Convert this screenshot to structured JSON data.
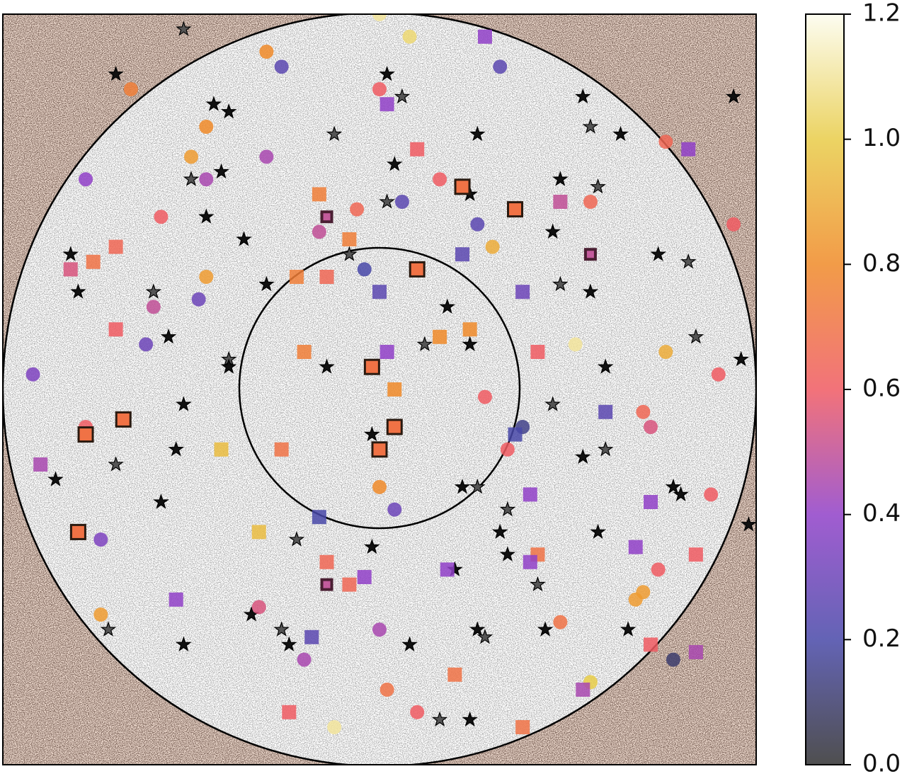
{
  "chart_data": {
    "type": "scatter",
    "clim": [
      0,
      1.2
    ],
    "colormap": [
      "#303030",
      "#4848a8",
      "#9040c8",
      "#f05a62",
      "#f08a28",
      "#e8cc48",
      "#fcfcee"
    ],
    "cticks": [
      {
        "value": 0,
        "label": "0.0"
      },
      0.2,
      0.4,
      0.6,
      0.8,
      {
        "value": 1,
        "label": "1.0"
      },
      1.2
    ],
    "circles": {
      "x": [
        0.5,
        0.54,
        0.35,
        0.37,
        0.66,
        0.17,
        0.5,
        0.27,
        0.25,
        0.35,
        0.11,
        0.27,
        0.58,
        0.53,
        0.47,
        0.78,
        0.21,
        0.42,
        0.63,
        0.65,
        0.48,
        0.27,
        0.26,
        0.2,
        0.19,
        0.76,
        0.88,
        0.95,
        0.64,
        0.85,
        0.86,
        0.11,
        0.69,
        0.67,
        0.5,
        0.52,
        0.13,
        0.94,
        0.87,
        0.84,
        0.85,
        0.34,
        0.13,
        0.74,
        0.5,
        0.4,
        0.89,
        0.78,
        0.51,
        0.55,
        0.44,
        0.97,
        0.88,
        0.04
      ],
      "y": [
        0.0,
        0.03,
        0.05,
        0.07,
        0.07,
        0.1,
        0.1,
        0.15,
        0.19,
        0.19,
        0.22,
        0.22,
        0.22,
        0.25,
        0.26,
        0.25,
        0.27,
        0.29,
        0.28,
        0.31,
        0.34,
        0.35,
        0.38,
        0.39,
        0.44,
        0.44,
        0.45,
        0.48,
        0.51,
        0.53,
        0.55,
        0.55,
        0.55,
        0.58,
        0.63,
        0.66,
        0.7,
        0.64,
        0.74,
        0.78,
        0.77,
        0.79,
        0.8,
        0.81,
        0.82,
        0.86,
        0.86,
        0.89,
        0.9,
        0.93,
        0.95,
        0.28,
        0.17,
        0.48
      ],
      "values": [
        1.1,
        1.05,
        0.8,
        0.25,
        0.25,
        0.75,
        0.6,
        0.8,
        0.85,
        0.45,
        0.4,
        0.45,
        0.6,
        0.25,
        0.65,
        0.65,
        0.6,
        0.5,
        0.25,
        0.9,
        0.2,
        0.85,
        0.3,
        0.5,
        0.3,
        1.1,
        0.9,
        0.6,
        0.6,
        0.65,
        0.55,
        0.6,
        0.15,
        0.6,
        0.8,
        0.3,
        0.35,
        0.6,
        0.6,
        0.85,
        0.85,
        0.55,
        0.85,
        0.7,
        0.45,
        0.45,
        0.1,
        1.0,
        0.7,
        0.6,
        1.1,
        0.6,
        0.65,
        0.35
      ]
    },
    "squares": {
      "x": [
        0.64,
        0.51,
        0.55,
        0.91,
        0.42,
        0.46,
        0.74,
        0.15,
        0.12,
        0.09,
        0.61,
        0.39,
        0.43,
        0.5,
        0.69,
        0.15,
        0.58,
        0.62,
        0.4,
        0.51,
        0.71,
        0.52,
        0.8,
        0.37,
        0.29,
        0.05,
        0.7,
        0.86,
        0.42,
        0.34,
        0.84,
        0.71,
        0.7,
        0.92,
        0.59,
        0.43,
        0.46,
        0.48,
        0.23,
        0.41,
        0.86,
        0.92,
        0.6,
        0.77,
        0.38,
        0.69,
        0.68
      ],
      "y": [
        0.03,
        0.12,
        0.18,
        0.18,
        0.24,
        0.3,
        0.25,
        0.31,
        0.33,
        0.34,
        0.32,
        0.35,
        0.35,
        0.37,
        0.37,
        0.42,
        0.43,
        0.42,
        0.45,
        0.45,
        0.45,
        0.5,
        0.53,
        0.58,
        0.58,
        0.6,
        0.64,
        0.65,
        0.67,
        0.69,
        0.71,
        0.72,
        0.73,
        0.72,
        0.74,
        0.73,
        0.76,
        0.75,
        0.78,
        0.83,
        0.84,
        0.85,
        0.88,
        0.9,
        0.93,
        0.95,
        0.56
      ],
      "values": [
        0.4,
        0.4,
        0.6,
        0.4,
        0.75,
        0.75,
        0.5,
        0.65,
        0.7,
        0.55,
        0.25,
        0.75,
        0.65,
        0.25,
        0.3,
        0.6,
        0.8,
        0.8,
        0.75,
        0.4,
        0.6,
        0.8,
        0.25,
        0.7,
        0.95,
        0.45,
        0.4,
        0.4,
        0.2,
        0.95,
        0.4,
        0.7,
        0.4,
        0.6,
        0.4,
        0.65,
        0.65,
        0.4,
        0.4,
        0.25,
        0.6,
        0.45,
        0.7,
        0.45,
        0.6,
        0.7,
        0.2
      ]
    },
    "outlined_squares": {
      "x": [
        0.61,
        0.68,
        0.55,
        0.49,
        0.52,
        0.5,
        0.16,
        0.11,
        0.1
      ],
      "y": [
        0.23,
        0.26,
        0.34,
        0.47,
        0.55,
        0.58,
        0.54,
        0.56,
        0.69
      ],
      "values": [
        0.7,
        0.7,
        0.7,
        0.7,
        0.7,
        0.7,
        0.7,
        0.7,
        0.7
      ]
    },
    "small_outlined_squares": {
      "x": [
        0.43,
        0.78,
        0.43
      ],
      "y": [
        0.27,
        0.32,
        0.76
      ],
      "values": [
        0.5,
        0.5,
        0.5
      ]
    },
    "stars": {
      "x": [
        0.24,
        0.15,
        0.51,
        0.53,
        0.28,
        0.3,
        0.44,
        0.63,
        0.77,
        0.78,
        0.82,
        0.97,
        0.25,
        0.29,
        0.52,
        0.51,
        0.62,
        0.74,
        0.79,
        0.27,
        0.32,
        0.46,
        0.73,
        0.87,
        0.91,
        0.09,
        0.1,
        0.2,
        0.35,
        0.59,
        0.74,
        0.78,
        0.22,
        0.3,
        0.3,
        0.43,
        0.56,
        0.62,
        0.8,
        0.92,
        0.98,
        0.24,
        0.73,
        0.49,
        0.23,
        0.15,
        0.07,
        0.77,
        0.8,
        0.21,
        0.61,
        0.63,
        0.89,
        0.9,
        0.67,
        0.66,
        0.79,
        0.39,
        0.49,
        0.67,
        0.71,
        0.6,
        0.33,
        0.37,
        0.38,
        0.24,
        0.14,
        0.54,
        0.63,
        0.64,
        0.72,
        0.83,
        0.58,
        0.62,
        0.99
      ],
      "y": [
        0.02,
        0.08,
        0.08,
        0.11,
        0.12,
        0.13,
        0.16,
        0.16,
        0.11,
        0.15,
        0.16,
        0.11,
        0.22,
        0.21,
        0.2,
        0.25,
        0.24,
        0.22,
        0.23,
        0.27,
        0.3,
        0.32,
        0.29,
        0.32,
        0.33,
        0.32,
        0.37,
        0.37,
        0.36,
        0.39,
        0.36,
        0.37,
        0.43,
        0.46,
        0.47,
        0.47,
        0.44,
        0.44,
        0.47,
        0.43,
        0.46,
        0.52,
        0.52,
        0.56,
        0.58,
        0.6,
        0.62,
        0.59,
        0.58,
        0.65,
        0.63,
        0.63,
        0.63,
        0.64,
        0.66,
        0.69,
        0.69,
        0.7,
        0.71,
        0.72,
        0.76,
        0.74,
        0.8,
        0.82,
        0.84,
        0.84,
        0.82,
        0.84,
        0.82,
        0.83,
        0.82,
        0.82,
        0.94,
        0.94,
        0.68
      ]
    }
  }
}
